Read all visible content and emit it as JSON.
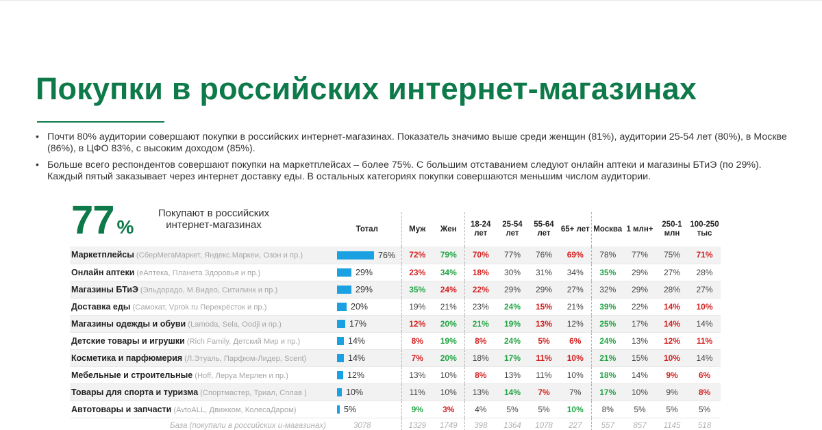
{
  "title": "Покупки в российских интернет-магазинах",
  "bullets": [
    "Почти 80% аудитории совершают покупки в российских интернет-магазинах. Показатель значимо выше среди женщин (81%), аудитории 25-54 лет (80%), в Москве (86%), в ЦФО 83%, с высоким доходом (85%).",
    "Больше всего респондентов совершают покупки на маркетплейсах – более 75%. С большим отставанием следуют онлайн аптеки и магазины БТиЭ (по 29%). Каждый пятый заказывает через интернет доставку еды. В остальных категориях покупки совершаются меньшим числом аудитории."
  ],
  "headline": {
    "value": "77",
    "unit": "%",
    "label": "Покупают в российских интернет-магазинах"
  },
  "colors": {
    "accent_green": "#0e7a4a",
    "bar_blue": "#1ba1e2",
    "sig_high": "#23a545",
    "sig_low": "#d32020"
  },
  "chart_data": {
    "type": "table",
    "columns": [
      {
        "key": "total",
        "label": "Тотал"
      },
      {
        "key": "m",
        "label": "Муж"
      },
      {
        "key": "f",
        "label": "Жен"
      },
      {
        "key": "a1824",
        "label": "18-24 лет"
      },
      {
        "key": "a2554",
        "label": "25-54 лет"
      },
      {
        "key": "a5564",
        "label": "55-64 лет"
      },
      {
        "key": "a65",
        "label": "65+ лет"
      },
      {
        "key": "moscow",
        "label": "Москва"
      },
      {
        "key": "c1m",
        "label": "1 млн+"
      },
      {
        "key": "c250",
        "label": "250-1 млн"
      },
      {
        "key": "c100",
        "label": "100-250 тыс"
      }
    ],
    "rows": [
      {
        "name": "Маркетплейсы",
        "examples": "(СберМегаМаркет, Яндекс.Маркеи, Озон и пр.)",
        "total": 76,
        "values": [
          72,
          79,
          70,
          77,
          76,
          69,
          78,
          77,
          75,
          71
        ],
        "sig": [
          "lo",
          "hi",
          "lo",
          "",
          "",
          "lo",
          "",
          "",
          "",
          "lo"
        ]
      },
      {
        "name": "Онлайн аптеки",
        "examples": "(еАптека, Планета Здоровья и пр.)",
        "total": 29,
        "values": [
          23,
          34,
          18,
          30,
          31,
          34,
          35,
          29,
          27,
          28
        ],
        "sig": [
          "lo",
          "hi",
          "lo",
          "",
          "",
          "",
          "hi",
          "",
          "",
          ""
        ]
      },
      {
        "name": "Магазины БТиЭ",
        "examples": "(Эльдорадо, М.Видео, Ситилинк и пр.)",
        "total": 29,
        "values": [
          35,
          24,
          22,
          29,
          29,
          27,
          32,
          29,
          28,
          27
        ],
        "sig": [
          "hi",
          "lo",
          "lo",
          "",
          "",
          "",
          "",
          "",
          "",
          ""
        ]
      },
      {
        "name": "Доставка еды",
        "examples": "(Самокат, Vprok.ru Перекрёсток и пр.)",
        "total": 20,
        "values": [
          19,
          21,
          23,
          24,
          15,
          21,
          39,
          22,
          14,
          10
        ],
        "sig": [
          "",
          "",
          "",
          "hi",
          "lo",
          "",
          "hi",
          "",
          "lo",
          "lo"
        ]
      },
      {
        "name": "Магазины одежды и обуви",
        "examples": "(Lamoda, Sela, Oodji и пр.)",
        "total": 17,
        "values": [
          12,
          20,
          21,
          19,
          13,
          12,
          25,
          17,
          14,
          14
        ],
        "sig": [
          "lo",
          "hi",
          "hi",
          "hi",
          "lo",
          "",
          "hi",
          "",
          "lo",
          ""
        ]
      },
      {
        "name": "Детские товары и игрушки",
        "examples": "(Rich Family, Детский Мир и пр.)",
        "total": 14,
        "values": [
          8,
          19,
          8,
          24,
          5,
          6,
          24,
          13,
          12,
          11
        ],
        "sig": [
          "lo",
          "hi",
          "lo",
          "hi",
          "lo",
          "lo",
          "hi",
          "",
          "lo",
          "lo"
        ]
      },
      {
        "name": "Косметика и парфюмерия",
        "examples": "(Л.Этуаль, Парфюм-Лидер, Scent)",
        "total": 14,
        "values": [
          7,
          20,
          18,
          17,
          11,
          10,
          21,
          15,
          10,
          14
        ],
        "sig": [
          "lo",
          "hi",
          "",
          "hi",
          "lo",
          "lo",
          "hi",
          "",
          "lo",
          ""
        ]
      },
      {
        "name": "Мебельные и строительные",
        "examples": "(Hoff, Леруа Мерлен и пр.)",
        "total": 12,
        "values": [
          13,
          10,
          8,
          13,
          11,
          10,
          18,
          14,
          9,
          6
        ],
        "sig": [
          "",
          "",
          "lo",
          "",
          "",
          "",
          "hi",
          "",
          "lo",
          "lo"
        ]
      },
      {
        "name": "Товары для спорта и туризма",
        "examples": "(Спортмастер, Триал, Сплав )",
        "total": 10,
        "values": [
          11,
          10,
          13,
          14,
          7,
          7,
          17,
          10,
          9,
          8
        ],
        "sig": [
          "",
          "",
          "",
          "hi",
          "lo",
          "",
          "hi",
          "",
          "",
          "lo"
        ]
      },
      {
        "name": "Автотовары и запчасти",
        "examples": "(AvtoALL, Движком, КолесаДаром)",
        "total": 5,
        "values": [
          9,
          3,
          4,
          5,
          5,
          10,
          8,
          5,
          5,
          5
        ],
        "sig": [
          "hi",
          "lo",
          "",
          "",
          "",
          "hi",
          "",
          "",
          "",
          ""
        ]
      }
    ],
    "base": {
      "label": "База (покупали в российских и-магазинах)",
      "values": [
        3078,
        1329,
        1749,
        398,
        1364,
        1078,
        227,
        557,
        857,
        1145,
        518
      ]
    }
  }
}
